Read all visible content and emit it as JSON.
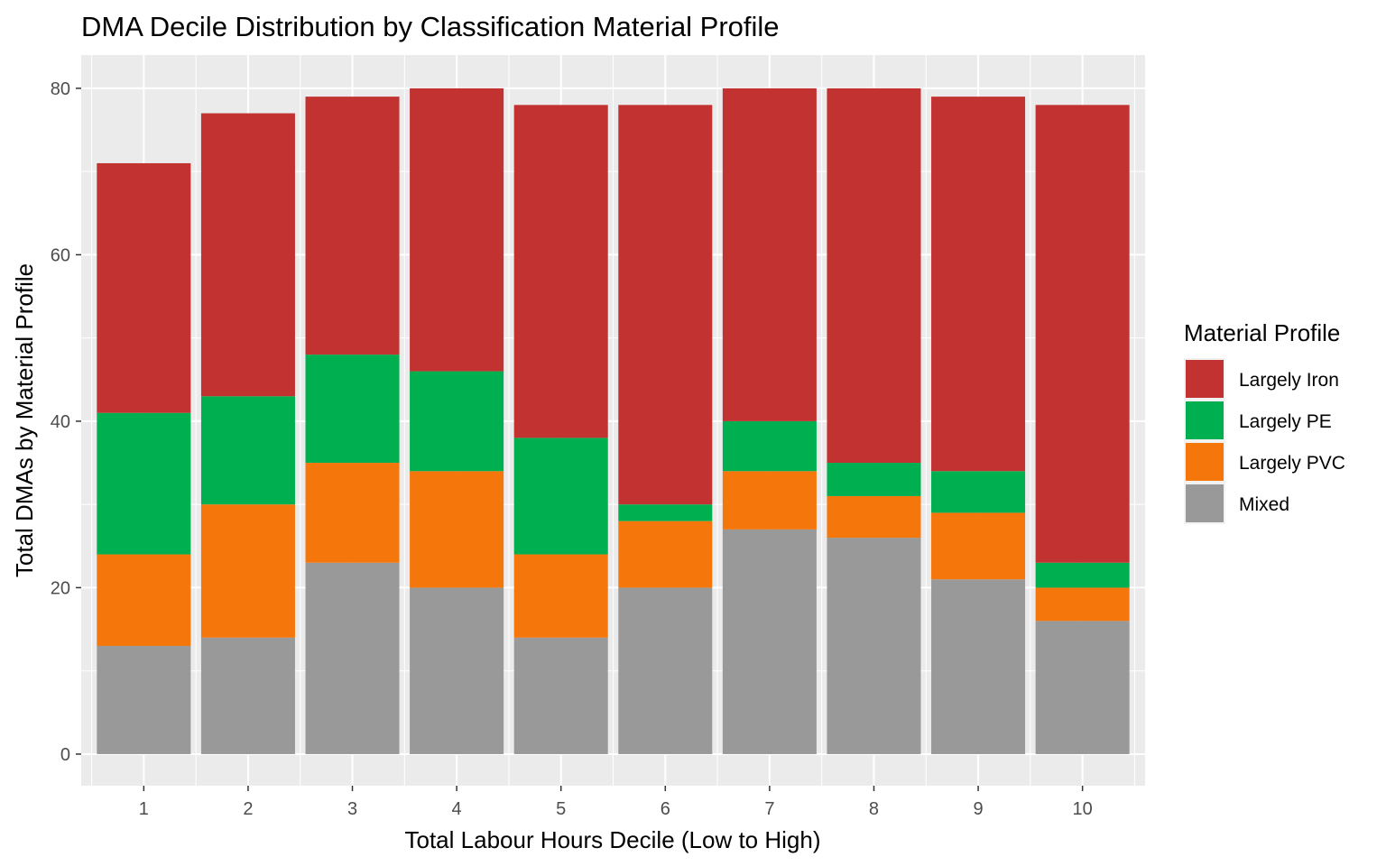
{
  "chart_data": {
    "type": "bar",
    "stacked": true,
    "title": "DMA Decile Distribution by Classification Material Profile",
    "xlabel": "Total Labour Hours Decile (Low to High)",
    "ylabel": "Total DMAs by Material Profile",
    "categories": [
      "1",
      "2",
      "3",
      "4",
      "5",
      "6",
      "7",
      "8",
      "9",
      "10"
    ],
    "ylim": [
      -3.8,
      84
    ],
    "yticks": [
      0,
      20,
      40,
      60,
      80
    ],
    "ytick_labels": [
      "0",
      "20",
      "40",
      "60",
      "80"
    ],
    "grid": true,
    "legend": {
      "title": "Material Profile",
      "position": "right"
    },
    "series": [
      {
        "name": "Largely Iron",
        "color": "#C23230",
        "values": [
          30,
          34,
          31,
          34,
          40,
          48,
          40,
          45,
          45,
          55
        ]
      },
      {
        "name": "Largely PE",
        "color": "#00AF50",
        "values": [
          17,
          13,
          13,
          12,
          14,
          2,
          6,
          4,
          5,
          3
        ]
      },
      {
        "name": "Largely PVC",
        "color": "#F5760B",
        "values": [
          11,
          16,
          12,
          14,
          10,
          8,
          7,
          5,
          8,
          4
        ]
      },
      {
        "name": "Mixed",
        "color": "#999999",
        "values": [
          13,
          14,
          23,
          20,
          14,
          20,
          27,
          26,
          21,
          16
        ]
      }
    ],
    "panel_background": "#EBEBEB",
    "grid_color": "#FFFFFF"
  }
}
